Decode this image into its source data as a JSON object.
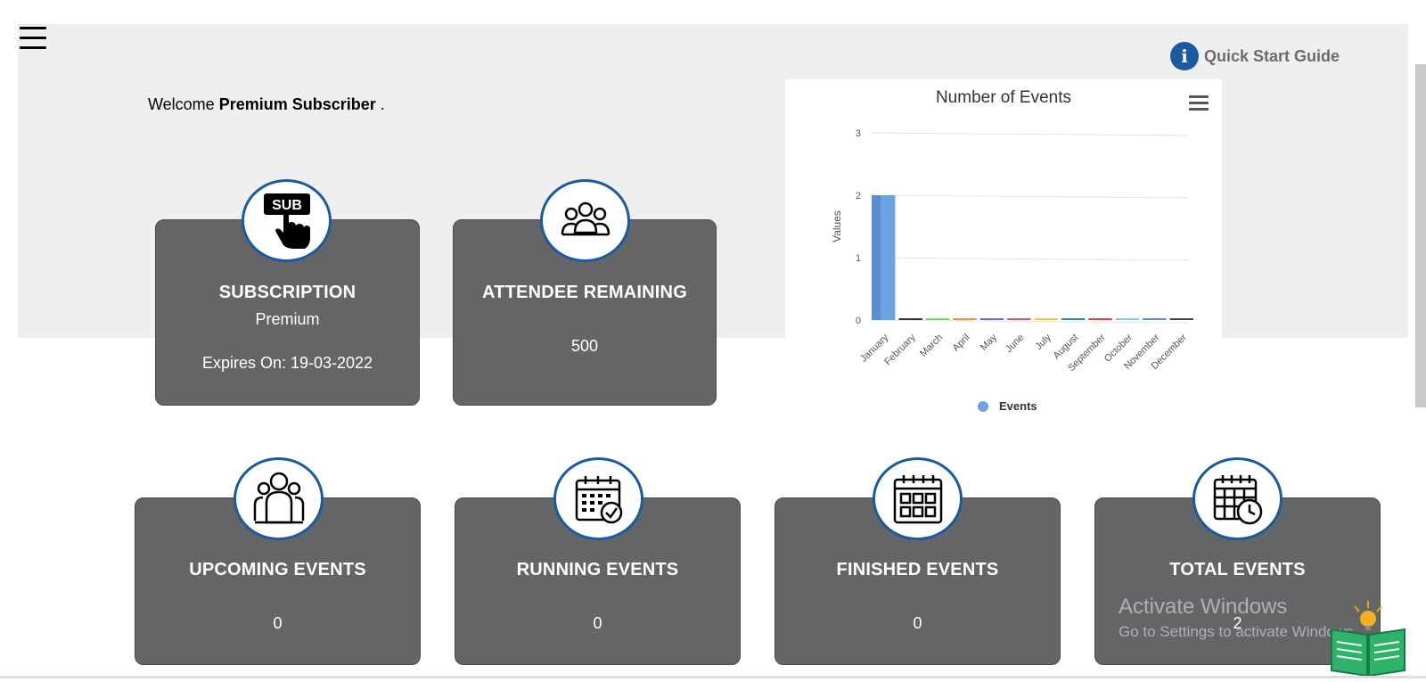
{
  "welcome": {
    "prefix": "Welcome",
    "name": "Premium Subscriber",
    "suffix": "."
  },
  "quick_start": {
    "label": "Quick Start Guide",
    "icon": "info-icon"
  },
  "cards_top": [
    {
      "title": "SUBSCRIPTION",
      "value": "Premium",
      "extra": "Expires On: 19-03-2022",
      "icon": "subscribe-hand-icon"
    },
    {
      "title": "ATTENDEE REMAINING",
      "value": "500",
      "icon": "group-icon"
    }
  ],
  "cards_bottom": [
    {
      "title": "UPCOMING EVENTS",
      "value": "0",
      "icon": "people-icon"
    },
    {
      "title": "RUNNING EVENTS",
      "value": "0",
      "icon": "calendar-check-icon"
    },
    {
      "title": "FINISHED EVENTS",
      "value": "0",
      "icon": "calendar-grid-icon"
    },
    {
      "title": "TOTAL EVENTS",
      "value": "2",
      "icon": "calendar-clock-icon"
    }
  ],
  "colors": {
    "card": "#646567",
    "accent_blue": "#1a5a9e",
    "bar": "#6aa3e0"
  },
  "watermark": {
    "line1": "Activate Windows",
    "line2": "Go to Settings to activate Windows."
  },
  "chart_data": {
    "type": "bar",
    "title": "Number of Events",
    "ylabel": "Values",
    "xlabel": "",
    "categories": [
      "January",
      "February",
      "March",
      "April",
      "May",
      "June",
      "July",
      "August",
      "September",
      "October",
      "November",
      "December"
    ],
    "series": [
      {
        "name": "Events",
        "values": [
          2,
          0,
          0,
          0,
          0,
          0,
          0,
          0,
          0,
          0,
          0,
          0
        ]
      }
    ],
    "ylim": [
      0,
      3
    ],
    "yticks": [
      0,
      1,
      2,
      3
    ],
    "grid": true,
    "legend": "bottom",
    "bar_colors": [
      "#6aa3e0",
      "#333333",
      "#7bd36b",
      "#f08f3c",
      "#6c6cd8",
      "#e0507a",
      "#d7d13a",
      "#2a8a8a",
      "#e04040",
      "#8ac8e8",
      "#5a8ae0",
      "#444444"
    ]
  }
}
